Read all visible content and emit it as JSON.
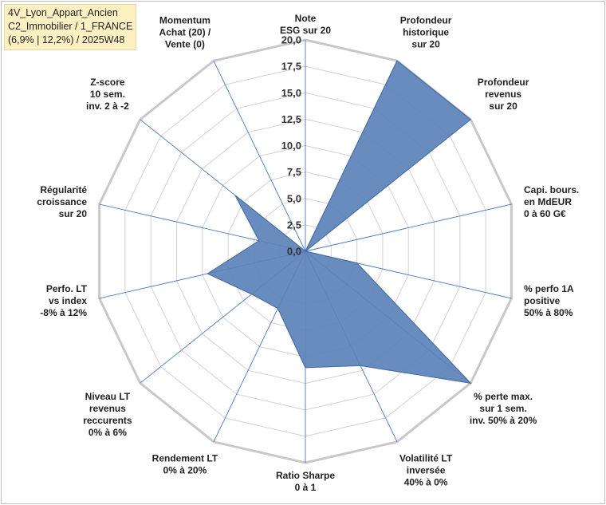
{
  "header": {
    "lines": [
      "4V_Lyon_Appart_Ancien",
      "C2_Immobilier / 1_FRANCE",
      "(6,9% | 12,2%) / 2025W48"
    ]
  },
  "colors": {
    "fill": "#5b82b8",
    "stroke": "#4a6fa5",
    "ring": "#d2d2d2",
    "outer_ring": "#c8c8c8",
    "spoke": "#4a78c2"
  },
  "chart_data": {
    "type": "radar",
    "title": "4V_Lyon_Appart_Ancien / C2_Immobilier / 1_FRANCE (6,9% | 12,2%) / 2025W48",
    "rmin": 0,
    "rmax": 20,
    "rstep": 2.5,
    "tick_labels": [
      "0,0",
      "2,5",
      "5,0",
      "7,5",
      "10,0",
      "12,5",
      "15,0",
      "17,5",
      "20,0"
    ],
    "axes": [
      {
        "label": [
          "Note",
          "ESG sur 20"
        ],
        "value": 0
      },
      {
        "label": [
          "Profondeur",
          "historique",
          "sur 20"
        ],
        "value": 20
      },
      {
        "label": [
          "Profondeur",
          "revenus",
          "sur 20"
        ],
        "value": 20
      },
      {
        "label": [
          "Capi. bours.",
          "en MdEUR",
          "0 à 60 G€"
        ],
        "value": 0
      },
      {
        "label": [
          "% perfo 1A",
          "positive",
          "50% à 80%"
        ],
        "value": 5
      },
      {
        "label": [
          "% perte max.",
          "sur 1 sem.",
          "inv. 50% à 20%"
        ],
        "value": 20
      },
      {
        "label": [
          "Volatilité LT",
          "inversée",
          "40% à 0%"
        ],
        "value": 12
      },
      {
        "label": [
          "Ratio Sharpe",
          "0 à 1"
        ],
        "value": 11
      },
      {
        "label": [
          "Rendement LT",
          "0% à 20%"
        ],
        "value": 6
      },
      {
        "label": [
          "Niveau LT",
          "revenus",
          "reccurents",
          "0% à 6%"
        ],
        "value": 6.5
      },
      {
        "label": [
          "Perfo. LT",
          "vs index",
          "-8% à 12%"
        ],
        "value": 9.5
      },
      {
        "label": [
          "Régularité",
          "croissance",
          "sur 20"
        ],
        "value": 4.5
      },
      {
        "label": [
          "Z-score",
          "10 sem.",
          "inv. 2 à -2"
        ],
        "value": 8.5
      },
      {
        "label": [
          "Momentum",
          "Achat (20) /",
          "Vente (0)"
        ],
        "value": 0
      }
    ]
  }
}
